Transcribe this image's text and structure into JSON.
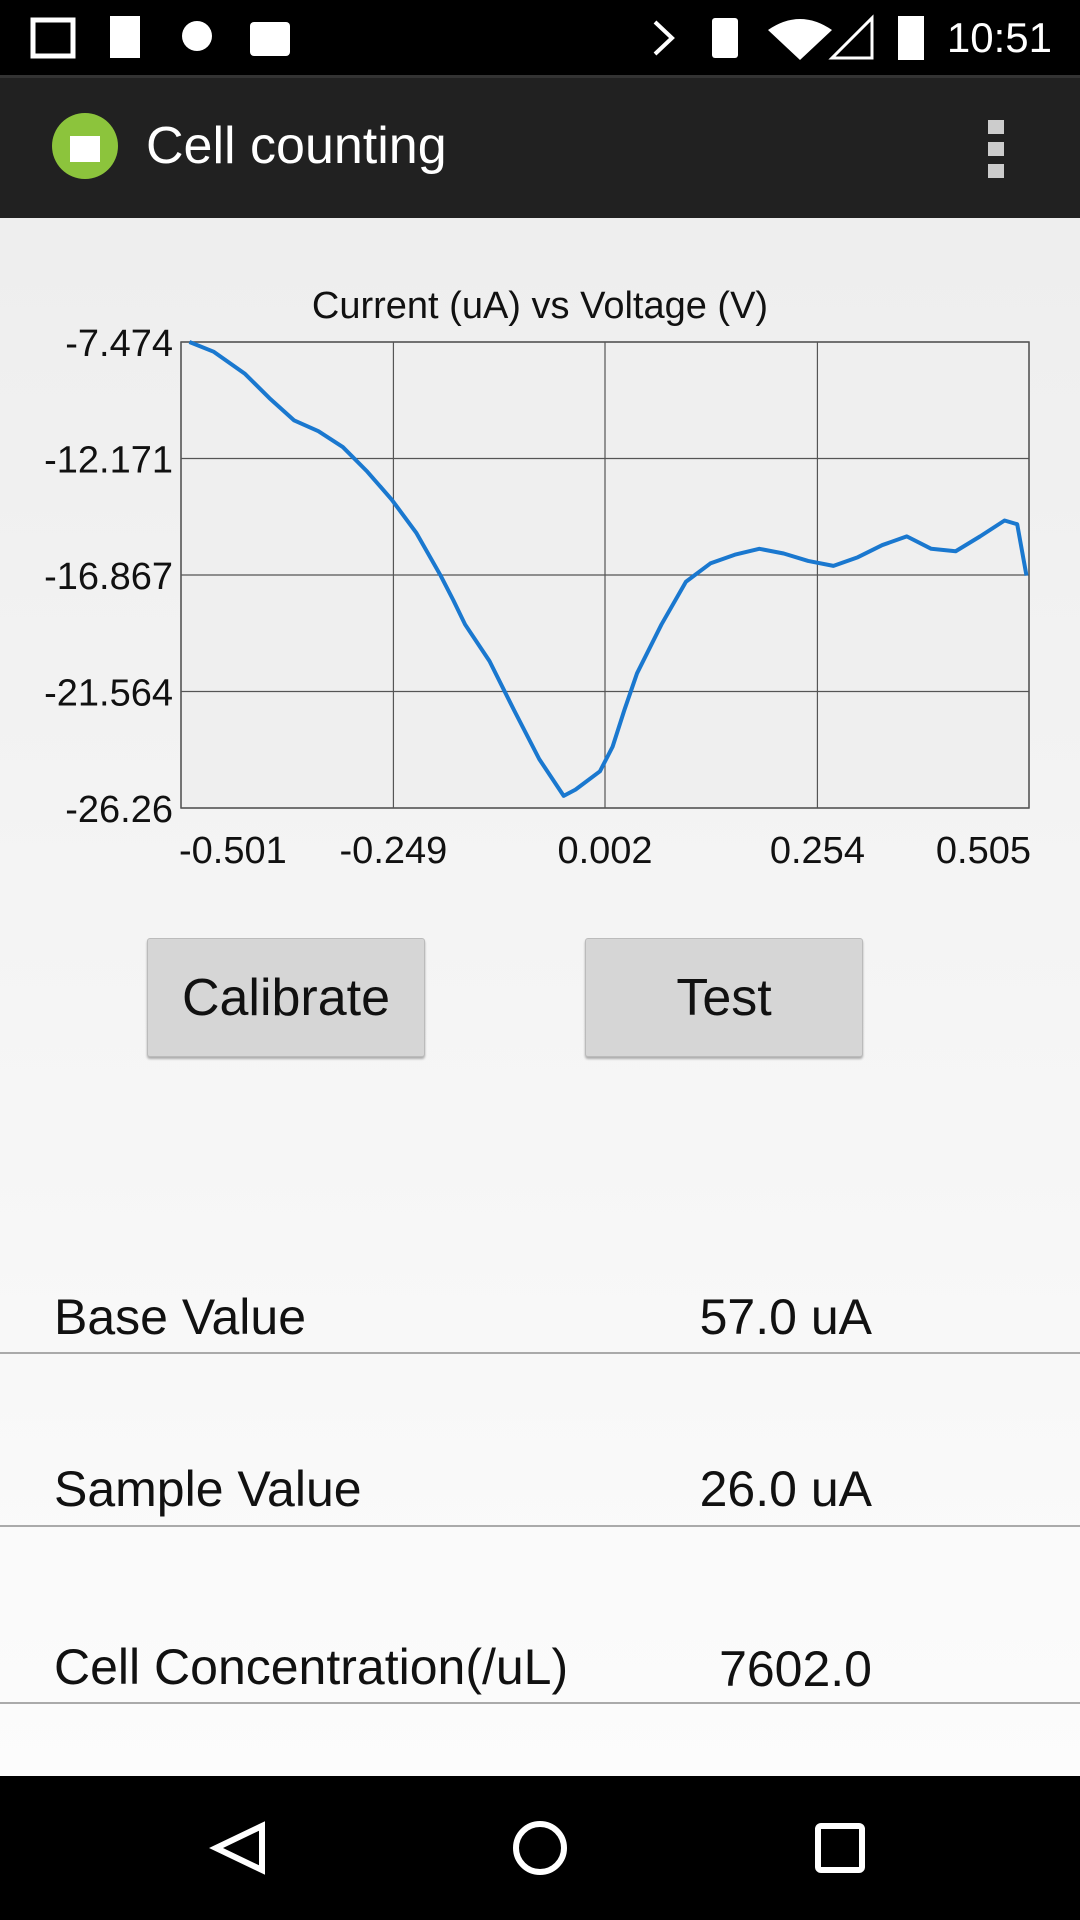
{
  "status_bar": {
    "time": "10:51"
  },
  "app_bar": {
    "title": "Cell counting"
  },
  "chart_data": {
    "type": "line",
    "title": "Current (uA) vs Voltage (V)",
    "xlim": [
      -0.501,
      0.505
    ],
    "xticks": [
      -0.501,
      -0.249,
      0.002,
      0.254,
      0.505
    ],
    "ylim": [
      -26.26,
      -7.474
    ],
    "yticks": [
      -7.474,
      -12.171,
      -16.867,
      -21.564,
      -26.26
    ],
    "grid": true,
    "series": [
      {
        "color": "#1a78cf",
        "x": [
          -0.491,
          -0.462,
          -0.425,
          -0.396,
          -0.367,
          -0.338,
          -0.309,
          -0.28,
          -0.251,
          -0.222,
          -0.193,
          -0.178,
          -0.164,
          -0.135,
          -0.106,
          -0.076,
          -0.047,
          -0.033,
          -0.004,
          0.011,
          0.025,
          0.04,
          0.069,
          0.098,
          0.127,
          0.156,
          0.185,
          0.214,
          0.243,
          0.273,
          0.302,
          0.331,
          0.36,
          0.389,
          0.418,
          0.447,
          0.476,
          0.491,
          0.502
        ],
        "values": [
          -7.474,
          -7.87,
          -8.76,
          -9.74,
          -10.63,
          -11.07,
          -11.71,
          -12.7,
          -13.83,
          -15.16,
          -16.89,
          -17.88,
          -18.86,
          -20.34,
          -22.31,
          -24.29,
          -25.77,
          -25.52,
          -24.78,
          -23.79,
          -22.31,
          -20.83,
          -18.86,
          -17.14,
          -16.4,
          -16.05,
          -15.81,
          -16.0,
          -16.3,
          -16.5,
          -16.15,
          -15.66,
          -15.31,
          -15.81,
          -15.91,
          -15.31,
          -14.67,
          -14.82,
          -16.89
        ]
      }
    ]
  },
  "buttons": [
    "Calibrate",
    "Test"
  ],
  "results": [
    {
      "label": "Base Value",
      "value": "57.0 uA"
    },
    {
      "label": "Sample Value",
      "value": "26.0 uA"
    },
    {
      "label": "Cell Concentration(/uL)",
      "value": "7602.0"
    }
  ]
}
